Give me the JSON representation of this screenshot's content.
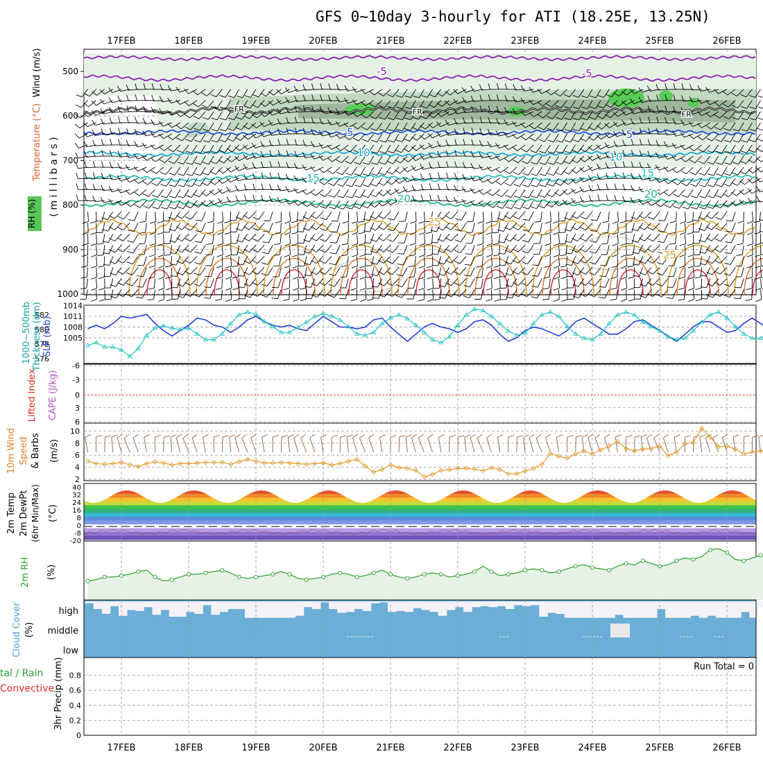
{
  "title": "GFS 0~10day 3-hourly for ATI (18.25E, 13.25N)",
  "dates": [
    "17FEB",
    "18FEB",
    "19FEB",
    "20FEB",
    "21FEB",
    "22FEB",
    "23FEB",
    "24FEB",
    "25FEB",
    "26FEB"
  ],
  "colors": {
    "grid": "#999999",
    "wind_barb": "#000000",
    "slp": "#1f3fd0",
    "thickness": "#22c0c0",
    "rh_light": "#e6f1e6",
    "rh_mid": "#c3d8c3",
    "rh_dark": "#8fa98f",
    "rh_green": "#57cc57",
    "purple": "#8a20b0",
    "blue": "#1e4fd8",
    "cyan": "#15a9d9",
    "teal": "#20c0b8",
    "green": "#22b890",
    "orange": "#e0a030",
    "red": "#e03040",
    "cloud": "#6baed6",
    "sfc_wind": "#e09a2a",
    "sfc_barb": "#8b6040",
    "rh2m": "#2ca02c",
    "lifted_zero": "#e04040"
  },
  "panels": {
    "upper": {
      "ylabel_wind": "Wind (m/s)",
      "ylabel_temp": "Temperature (°C)",
      "ylabel_rh": "RH (%)",
      "ylabel_mb": "( m i l l i b a r s )",
      "yticks": [
        "500",
        "600",
        "700",
        "800",
        "900",
        "1000"
      ],
      "temp_labels": [
        {
          "text": "-5",
          "x_day": 3.87,
          "mb": 500,
          "color": "purple"
        },
        {
          "text": "-5",
          "x_day": 6.92,
          "mb": 505,
          "color": "purple"
        },
        {
          "text": "5",
          "x_day": 3.4,
          "mb": 637,
          "color": "blue"
        },
        {
          "text": "5",
          "x_day": 7.55,
          "mb": 642,
          "color": "blue"
        },
        {
          "text": "10",
          "x_day": 3.6,
          "mb": 682,
          "color": "cyan"
        },
        {
          "text": "10",
          "x_day": 7.35,
          "mb": 692,
          "color": "cyan"
        },
        {
          "text": "15",
          "x_day": 2.85,
          "mb": 740,
          "color": "teal"
        },
        {
          "text": "15",
          "x_day": 7.82,
          "mb": 728,
          "color": "teal"
        },
        {
          "text": "20",
          "x_day": 4.2,
          "mb": 786,
          "color": "green"
        },
        {
          "text": "20",
          "x_day": 7.87,
          "mb": 776,
          "color": "green"
        },
        {
          "text": "25",
          "x_day": 4.65,
          "mb": 838,
          "color": "orange"
        },
        {
          "text": "25",
          "x_day": 8.15,
          "mb": 912,
          "color": "orange"
        }
      ],
      "fr_labels": [
        {
          "text": "FR",
          "x_day": 1.75,
          "mb": 584
        },
        {
          "text": "FR",
          "x_day": 4.4,
          "mb": 590
        },
        {
          "text": "FR",
          "x_day": 8.4,
          "mb": 596
        }
      ]
    },
    "pressure": {
      "ylabel_slp": "SLP (mb)",
      "ylabel_thick": "Thickness (dm)",
      "ylabel_thick2": "1000~500mb",
      "left_ticks": [
        "582",
        "580",
        "578",
        "576"
      ],
      "right_ticks": [
        "1014",
        "1011",
        "1008",
        "1005"
      ]
    },
    "stability": {
      "ylabel_li": "Lifted Index",
      "ylabel_cape": "CAPE (J/kg)",
      "yticks": [
        "-6",
        "-3",
        "0",
        "3",
        "6"
      ]
    },
    "sfcwind": {
      "ylabel1": "10m Wind",
      "ylabel2": "Speed",
      "ylabel3": "& Barbs",
      "ylabel_unit": "(m/s)",
      "yticks": [
        "10",
        "8",
        "6",
        "4",
        "2"
      ]
    },
    "temp2m": {
      "ylabel1": "2m Temp",
      "ylabel2": "2m DewPt",
      "ylabel3": "(6hr Min/Max)",
      "ylabel_unit": "(°C)",
      "yticks": [
        "40",
        "32",
        "24",
        "16",
        "8",
        "0",
        "-8",
        "-20"
      ]
    },
    "rh2m": {
      "ylabel": "2m RH",
      "ylabel_unit": "(%)"
    },
    "cloud": {
      "ylabel": "Cloud Cover",
      "ylabel_unit": "(%)",
      "levels": [
        "high",
        "middle",
        "low"
      ]
    },
    "precip": {
      "ylabel": "3hr Precip (mm)",
      "legend1": "tal / Rain",
      "legend2": "Convective",
      "run_total": "Run Total = 0",
      "yticks": [
        "0.8",
        "0.6",
        "0.4",
        "0.2",
        "0"
      ]
    }
  },
  "chart_data": [
    {
      "type": "line",
      "name": "SLP",
      "unit": "mb",
      "x_start": "16FEB 12UTC",
      "x_step_hours": 3,
      "ylim": [
        1002,
        1014
      ],
      "values": [
        1007.5,
        1008.5,
        1007.5,
        1009,
        1011,
        1010.5,
        1011,
        1011.5,
        1009,
        1007,
        1005.5,
        1007,
        1008.5,
        1010.5,
        1010,
        1008.5,
        1008,
        1006.5,
        1008,
        1010,
        1011,
        1009.5,
        1008.5,
        1008,
        1008.5,
        1007.5,
        1007,
        1009,
        1011,
        1009.5,
        1008,
        1008,
        1007.5,
        1008,
        1010,
        1010.5,
        1008,
        1006,
        1004,
        1006,
        1008,
        1009,
        1008,
        1007.5,
        1006.5,
        1007.5,
        1009.5,
        1010,
        1008.5,
        1006,
        1004,
        1005,
        1007,
        1008,
        1007.5,
        1006.5,
        1005.5,
        1007,
        1009.5,
        1010.5,
        1009,
        1007.5,
        1006,
        1006,
        1007.5,
        1009.5,
        1010,
        1008.5,
        1007,
        1005.5,
        1004,
        1006,
        1008,
        1009.5,
        1009.5,
        1008,
        1006.5,
        1007,
        1009,
        1010.5,
        1009,
        1007.5,
        1007,
        1008,
        1010,
        1012,
        1012.5,
        1009.5,
        1007,
        1006.5,
        1009,
        1010.5,
        1010.5,
        1011,
        1012.5
      ]
    },
    {
      "type": "line",
      "name": "1000~500mb Thickness",
      "unit": "dm",
      "ylim": [
        575,
        583
      ],
      "values": [
        577.8,
        578.2,
        577.6,
        577.6,
        577.2,
        576.3,
        577.4,
        579.2,
        580.2,
        580.5,
        580.2,
        580,
        580.2,
        579.4,
        578.6,
        578.6,
        579.4,
        580.8,
        582,
        582.4,
        582.1,
        581.1,
        580.4,
        579.6,
        579.6,
        580.3,
        581,
        581.8,
        582.2,
        581.8,
        581.3,
        580.4,
        579.4,
        579.2,
        579.6,
        580.8,
        581.6,
        582,
        581.5,
        580.6,
        579.6,
        578.6,
        578.2,
        579,
        580.6,
        582,
        582.8,
        582.6,
        581.8,
        580.8,
        579.8,
        579.2,
        579.5,
        580.8,
        582,
        582.4,
        581.8,
        580.4,
        579.4,
        578.8,
        578.6,
        579.4,
        580.8,
        582,
        582.4,
        582,
        581,
        580.4,
        579.8,
        579,
        578.6,
        578.8,
        579.8,
        581,
        582,
        582.4,
        581.6,
        580.4,
        579.4,
        578.8,
        578.8,
        579.6,
        580.8,
        581.6,
        581.6,
        581,
        580,
        578.6,
        577.8,
        577.6,
        578,
        578.4,
        577.4,
        576.8,
        576.4
      ]
    },
    {
      "type": "line",
      "name": "10m Wind Speed",
      "unit": "m/s",
      "ylim": [
        2,
        11
      ],
      "values": [
        5,
        4.6,
        4.5,
        4.6,
        4.8,
        4.4,
        4.1,
        4.6,
        4.9,
        4.7,
        4.4,
        4.6,
        4.6,
        4.7,
        4.8,
        4.8,
        4.8,
        4.5,
        4.9,
        5.3,
        5,
        4.7,
        4.7,
        4.8,
        4.7,
        4.6,
        4.5,
        4.6,
        4.7,
        4.4,
        4.6,
        5,
        5.3,
        4.2,
        3.2,
        3.6,
        4.4,
        3.9,
        3.8,
        3.5,
        2.4,
        2.8,
        3.5,
        3.6,
        3.8,
        3.8,
        3.7,
        3.4,
        3.9,
        3.6,
        2.9,
        2.9,
        3.4,
        3.8,
        4.5,
        6.3,
        5.8,
        5.5,
        6.2,
        6.7,
        6.2,
        6.9,
        7.5,
        8.3,
        7.1,
        6.7,
        7,
        7.1,
        7.5,
        5.9,
        6.5,
        7.9,
        8.1,
        10.5,
        9,
        7.4,
        7.5,
        7,
        6.2,
        6.5,
        6.7,
        7,
        6.8,
        6.8,
        7,
        7.1,
        6.8,
        6.6,
        5.9,
        5.8,
        5.8,
        6.4,
        6.8,
        7.3,
        6.9,
        6.9
      ]
    },
    {
      "type": "line",
      "name": "2m RH",
      "unit": "%",
      "values": [
        13,
        14,
        16,
        16,
        17,
        18,
        20,
        21,
        16,
        13,
        14,
        16,
        18,
        18,
        19,
        20,
        21,
        19,
        16,
        15,
        16,
        17,
        18,
        20,
        18,
        15,
        14,
        15,
        16,
        18,
        19,
        18,
        16,
        17,
        19,
        21,
        18,
        16,
        15,
        16,
        18,
        19,
        18,
        16,
        17,
        18,
        20,
        24,
        20,
        17,
        18,
        19,
        21,
        22,
        21,
        19,
        20,
        22,
        24,
        25,
        23,
        22,
        21,
        24,
        26,
        25,
        28,
        26,
        24,
        25,
        28,
        30,
        29,
        31,
        36,
        37,
        34,
        29,
        28,
        30,
        32,
        31,
        29,
        30,
        33,
        35,
        34,
        31,
        27,
        28,
        31,
        33,
        34,
        35,
        35
      ]
    },
    {
      "type": "table",
      "name": "Cloud Cover",
      "rows": [
        "high",
        "middle",
        "low"
      ],
      "note": "high cloud coverage fraction per 3-hourly step (fraction of band filled from top)",
      "high": [
        0.9,
        0.6,
        0.35,
        0.75,
        0.25,
        0.55,
        0.5,
        0.7,
        0.3,
        0.55,
        0.2,
        0.2,
        0.45,
        0.35,
        0.8,
        0.3,
        0.45,
        0.6,
        0.6,
        0.05,
        0.05,
        0.05,
        0.05,
        0.05,
        0.15,
        0.25,
        0.7,
        0.6,
        0.95,
        0.6,
        0.4,
        0.45,
        0.6,
        0.5,
        0.9,
        0.95,
        0.45,
        0.5,
        0.45,
        0.65,
        0.55,
        0.45,
        0.25,
        0.55,
        0.7,
        0.45,
        0.7,
        0.75,
        0.7,
        0.75,
        0.6,
        0.8,
        0.75,
        0.8,
        0.2,
        0.4,
        0.35,
        0.15,
        0.05,
        0.05,
        0.05,
        0.05,
        0.05,
        0.3,
        0.05,
        0.05,
        0.05,
        0.05,
        0.6,
        0.05,
        0.05,
        0.05,
        0.25,
        0.05,
        0.25,
        0.05,
        0.05,
        0.05,
        0.45,
        0.15,
        0.7,
        0.3,
        0.65,
        0.05,
        0.05,
        0.05,
        0.05,
        0.05,
        0.05,
        0.35,
        0.05,
        0.15,
        0.6,
        0.3,
        0.6,
        0.6
      ],
      "middle_note": "single middle-cloud patch near 24FEB"
    }
  ]
}
